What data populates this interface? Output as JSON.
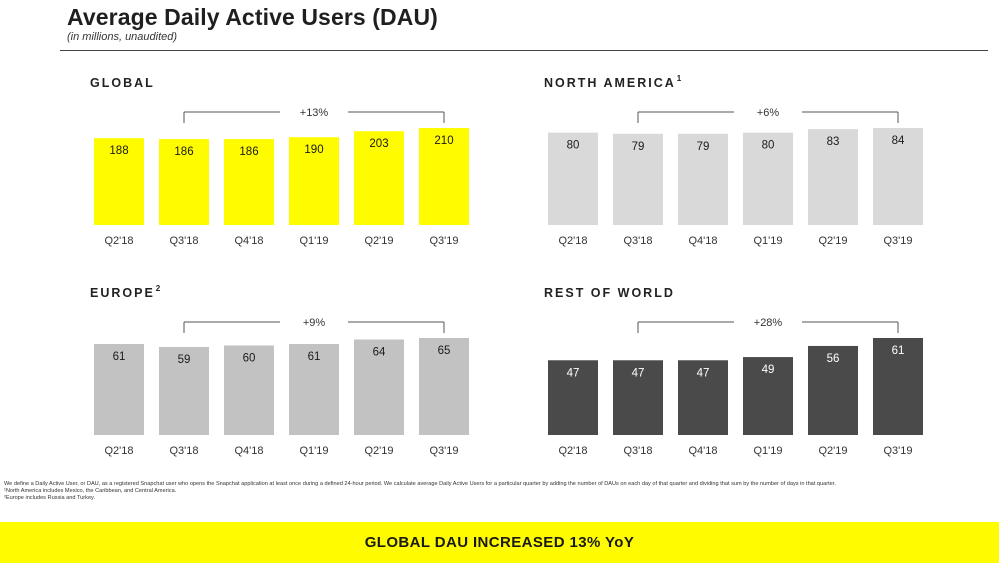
{
  "header": {
    "title": "Average Daily Active Users (DAU)",
    "subtitle": "(in millions, unaudited)"
  },
  "colors": {
    "global": "#fffc00",
    "north_america": "#d9d9d9",
    "europe": "#c2c2c2",
    "rest_of_world": "#4a4a4a",
    "banner": "#fffc00"
  },
  "chart_data": [
    {
      "type": "bar",
      "title": "GLOBAL",
      "title_sup": "",
      "categories": [
        "Q2'18",
        "Q3'18",
        "Q4'18",
        "Q1'19",
        "Q2'19",
        "Q3'19"
      ],
      "values": [
        188,
        186,
        186,
        190,
        203,
        210
      ],
      "annotation": "+13%",
      "color": "#fffc00",
      "label_color": "#1a1a1a"
    },
    {
      "type": "bar",
      "title": "NORTH AMERICA",
      "title_sup": "1",
      "categories": [
        "Q2'18",
        "Q3'18",
        "Q4'18",
        "Q1'19",
        "Q2'19",
        "Q3'19"
      ],
      "values": [
        80,
        79,
        79,
        80,
        83,
        84
      ],
      "annotation": "+6%",
      "color": "#d9d9d9",
      "label_color": "#1a1a1a"
    },
    {
      "type": "bar",
      "title": "EUROPE",
      "title_sup": "2",
      "categories": [
        "Q2'18",
        "Q3'18",
        "Q4'18",
        "Q1'19",
        "Q2'19",
        "Q3'19"
      ],
      "values": [
        61,
        59,
        60,
        61,
        64,
        65
      ],
      "annotation": "+9%",
      "color": "#c2c2c2",
      "label_color": "#1a1a1a"
    },
    {
      "type": "bar",
      "title": "REST OF WORLD",
      "title_sup": "",
      "categories": [
        "Q2'18",
        "Q3'18",
        "Q4'18",
        "Q1'19",
        "Q2'19",
        "Q3'19"
      ],
      "values": [
        47,
        47,
        47,
        49,
        56,
        61
      ],
      "annotation": "+28%",
      "color": "#4a4a4a",
      "label_color": "#ffffff"
    }
  ],
  "footnotes": {
    "definition": "We define a Daily Active User, or DAU, as a registered Snapchat user who opens the Snapchat application at least once during a defined 24-hour period. We calculate average Daily Active Users for a particular quarter by adding the number of DAUs on each day of that quarter and dividing that sum by the number of days in that quarter.",
    "note1": "¹North America includes Mexico, the Caribbean, and Central America.",
    "note2": "²Europe includes Russia and Turkey."
  },
  "banner": {
    "text": "GLOBAL DAU INCREASED 13% YoY"
  }
}
